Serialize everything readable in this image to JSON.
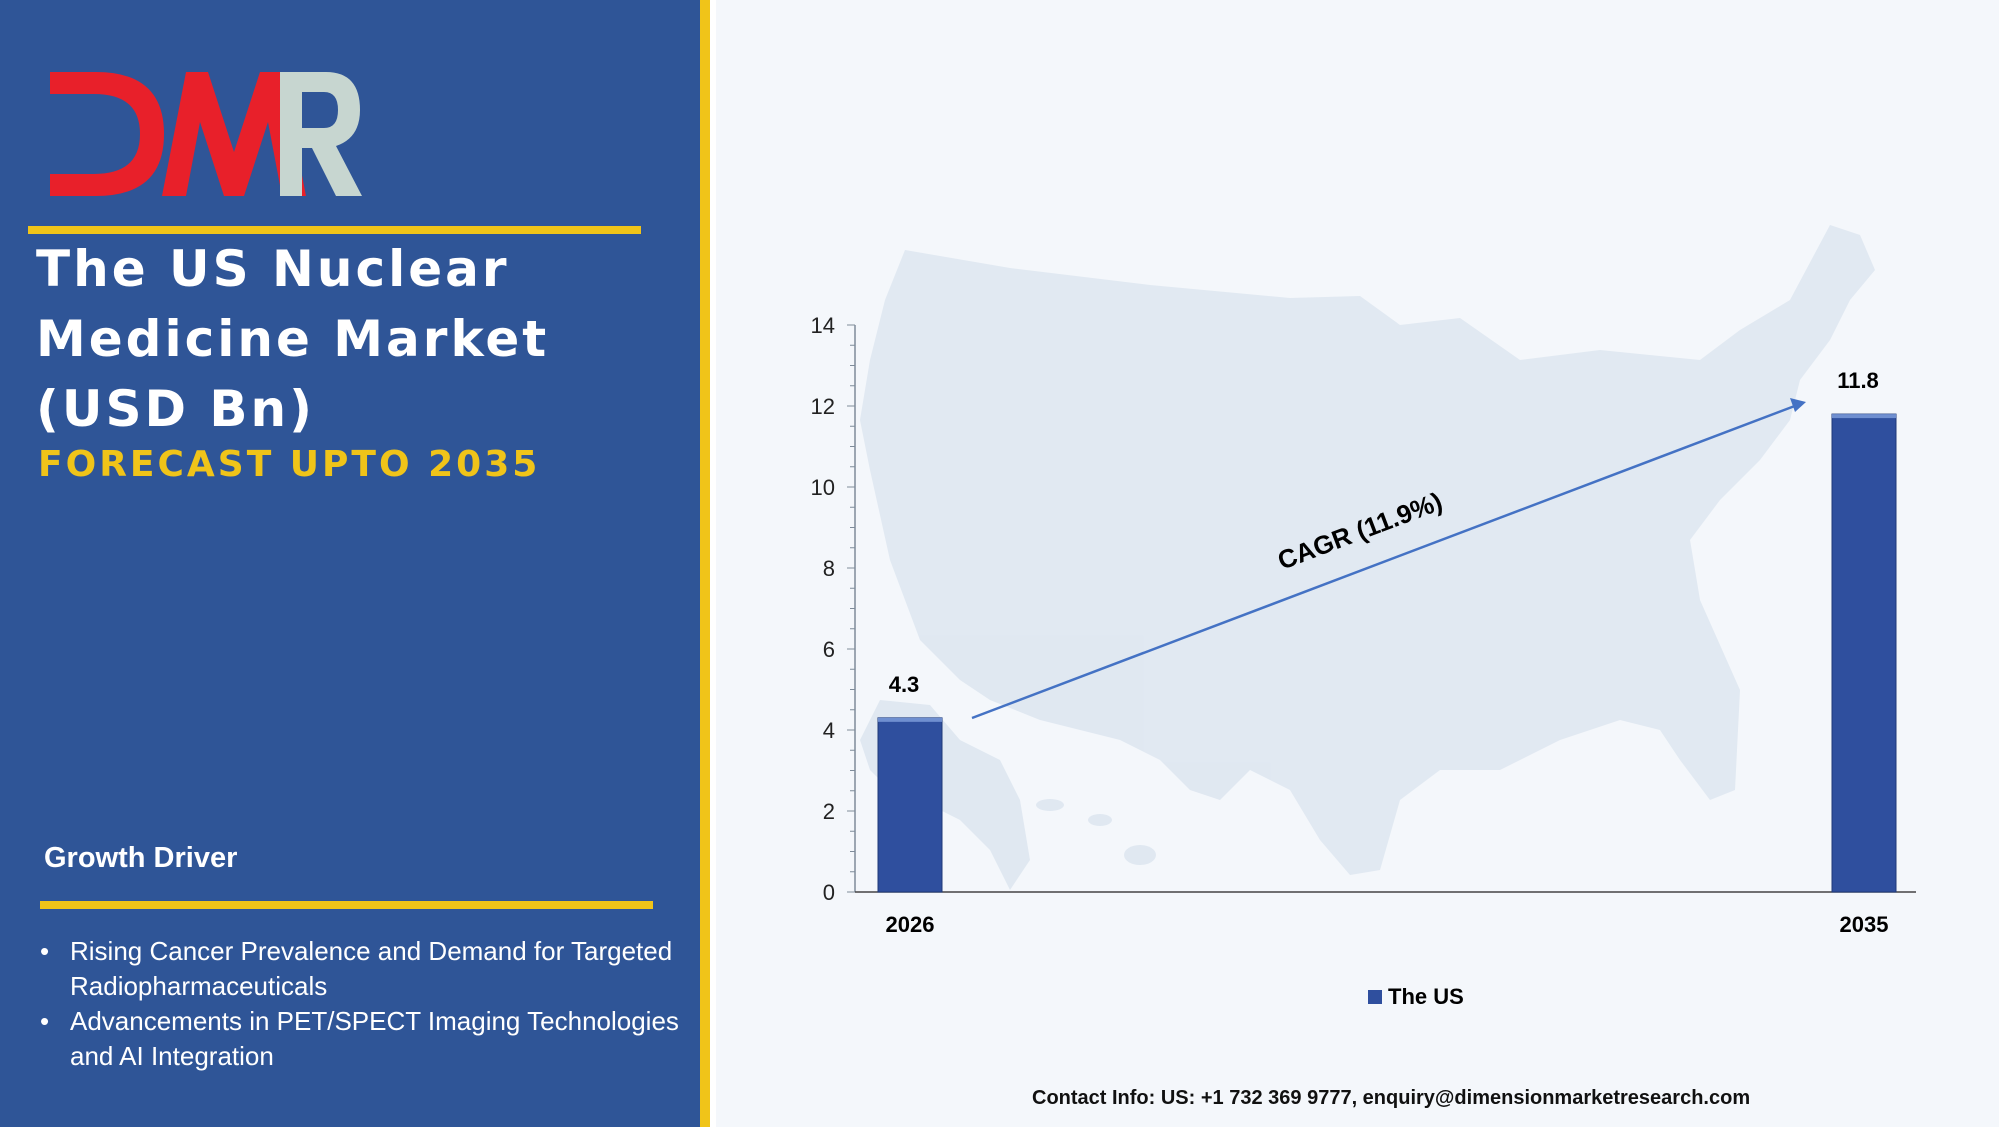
{
  "logo": {
    "text": "DMR",
    "colors": {
      "d": "#e8202a",
      "m": "#e8202a",
      "r": "#c7d6d0",
      "outline": "#b9ccc6"
    }
  },
  "title": "The US Nuclear Medicine Market (USD Bn)",
  "subtitle": "FORECAST UPTO 2035",
  "growth_driver": {
    "heading": "Growth Driver",
    "items": [
      "Rising Cancer Prevalence and Demand for Targeted Radiopharmaceuticals",
      "Advancements in PET/SPECT Imaging Technologies and AI Integration"
    ]
  },
  "colors": {
    "panel": "#2f5597",
    "accent": "#f0c419",
    "bar": "#2f4f9e",
    "arrow": "#4472c4",
    "map": "#dde6f0"
  },
  "background_icon": "us-map",
  "chart_data": {
    "type": "bar",
    "categories": [
      "2026",
      "2035"
    ],
    "series": [
      {
        "name": "The US",
        "values": [
          4.3,
          11.8
        ]
      }
    ],
    "data_labels": [
      "4.3",
      "11.8"
    ],
    "ylim": [
      0,
      14
    ],
    "yticks": [
      "0",
      "2",
      "4",
      "6",
      "8",
      "10",
      "12",
      "14"
    ],
    "annotation": "CAGR (11.9%)",
    "legend_position": "bottom",
    "grid": false
  },
  "contact": "Contact Info: US: +1 732 369 9777, enquiry@dimensionmarketresearch.com"
}
